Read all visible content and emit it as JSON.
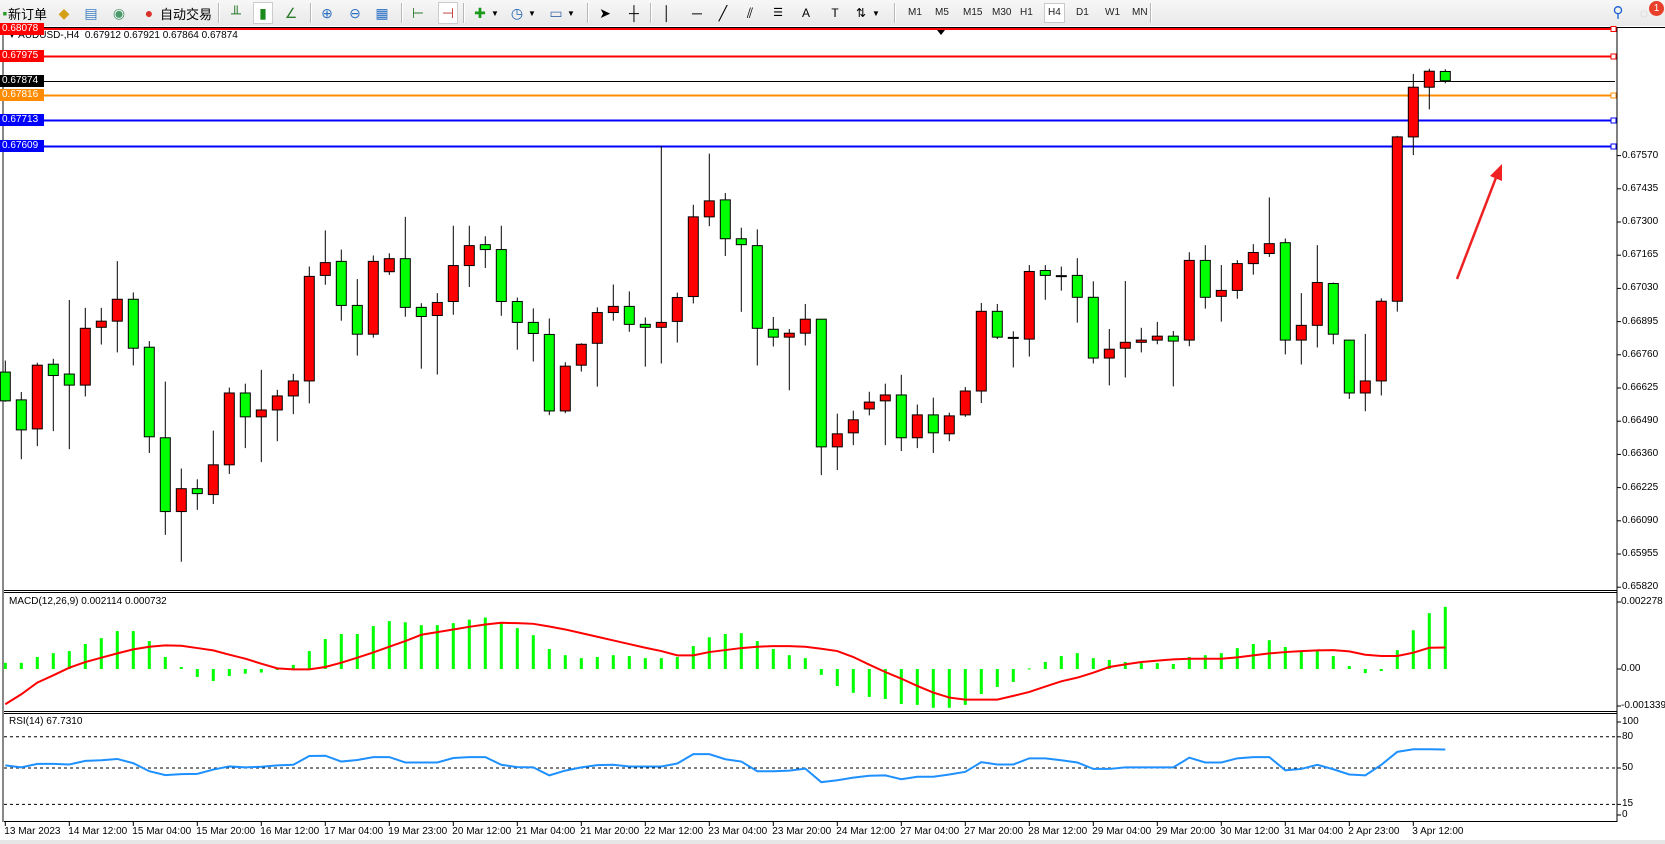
{
  "toolbar": {
    "new_order_label": "新订单",
    "auto_trading_label": "自动交易",
    "timeframes": [
      "M1",
      "M5",
      "M15",
      "M30",
      "H1",
      "H4",
      "D1",
      "W1",
      "MN"
    ],
    "active_timeframe": "H4",
    "notification_count": "1",
    "icons": [
      "new-order-icon",
      "market-watch-icon",
      "data-window-icon",
      "signals-icon",
      "auto-trading-icon",
      "bar-chart-icon",
      "candlestick-icon",
      "line-chart-icon",
      "zoom-in-icon",
      "zoom-out-icon",
      "tile-windows-icon",
      "chart-shift-icon",
      "autoscroll-icon",
      "indicators-icon",
      "periods-icon",
      "templates-icon",
      "cursor-icon",
      "crosshair-icon",
      "vertical-line-icon",
      "horizontal-line-icon",
      "trendline-icon",
      "channel-icon",
      "fibonacci-icon",
      "text-icon",
      "text-label-icon",
      "arrows-icon",
      "search-icon",
      "notification-icon"
    ]
  },
  "chart": {
    "symbol": "AUDUSD-,H4",
    "ohlc_text": "0.67912 0.67921 0.67864 0.67874",
    "bull_color": "#ff0000",
    "bear_color": "#00ff00",
    "price_axis_labels": [
      "0.67570",
      "0.67435",
      "0.67300",
      "0.67165",
      "0.67030",
      "0.66895",
      "0.66760",
      "0.66625",
      "0.66490",
      "0.66360",
      "0.66225",
      "0.66090",
      "0.65955",
      "0.65820"
    ],
    "horizontal_lines": [
      {
        "price": 0.68078,
        "label": "0.68078",
        "color": "#ff0000"
      },
      {
        "price": 0.67975,
        "label": "0.67975",
        "color": "#ff0000"
      },
      {
        "price": 0.67874,
        "label": "0.67874",
        "color": "#000000"
      },
      {
        "price": 0.67816,
        "label": "0.67816",
        "color": "#ff8c00"
      },
      {
        "price": 0.67713,
        "label": "0.67713",
        "color": "#0000ff"
      },
      {
        "price": 0.67609,
        "label": "0.67609",
        "color": "#0000ff"
      }
    ],
    "time_labels": [
      "13 Mar 2023",
      "14 Mar 12:00",
      "15 Mar 04:00",
      "15 Mar 20:00",
      "16 Mar 12:00",
      "17 Mar 04:00",
      "19 Mar 23:00",
      "20 Mar 12:00",
      "21 Mar 04:00",
      "21 Mar 20:00",
      "22 Mar 12:00",
      "23 Mar 04:00",
      "23 Mar 20:00",
      "24 Mar 12:00",
      "27 Mar 04:00",
      "27 Mar 20:00",
      "28 Mar 12:00",
      "29 Mar 04:00",
      "29 Mar 20:00",
      "30 Mar 12:00",
      "31 Mar 04:00",
      "2 Apr 23:00",
      "3 Apr 12:00"
    ],
    "arrow_color": "#ee2222"
  },
  "macd": {
    "title": "MACD(12,26,9) 0.002114 0.000732",
    "axis_labels": [
      "0.002278",
      "0.00",
      "-0.001339"
    ],
    "histogram_color": "#00ff00",
    "signal_color": "#ff0000"
  },
  "rsi": {
    "title": "RSI(14) 67.7310",
    "axis_labels": [
      "100",
      "80",
      "50",
      "15",
      "0"
    ],
    "line_color": "#1e90ff"
  },
  "chart_data": [
    {
      "type": "candlestick",
      "title": "AUDUSD-,H4",
      "ylim": [
        0.6582,
        0.68078
      ],
      "ohlc": [
        [
          0.6669,
          0.66737,
          0.66569,
          0.66573
        ],
        [
          0.66577,
          0.66609,
          0.66336,
          0.66455
        ],
        [
          0.66459,
          0.66728,
          0.66389,
          0.66718
        ],
        [
          0.66722,
          0.66744,
          0.6645,
          0.66676
        ],
        [
          0.66682,
          0.66983,
          0.66377,
          0.66637
        ],
        [
          0.66637,
          0.66951,
          0.66591,
          0.66868
        ],
        [
          0.66872,
          0.66951,
          0.66802,
          0.66897
        ],
        [
          0.66897,
          0.67141,
          0.6677,
          0.66986
        ],
        [
          0.66986,
          0.67014,
          0.66717,
          0.66787
        ],
        [
          0.66791,
          0.66816,
          0.66361,
          0.66427
        ],
        [
          0.66423,
          0.66651,
          0.66028,
          0.66123
        ],
        [
          0.66123,
          0.66298,
          0.65919,
          0.66216
        ],
        [
          0.66216,
          0.66254,
          0.6613,
          0.66196
        ],
        [
          0.66192,
          0.66452,
          0.66154,
          0.66313
        ],
        [
          0.66313,
          0.66627,
          0.66276,
          0.66605
        ],
        [
          0.66605,
          0.66643,
          0.66381,
          0.66508
        ],
        [
          0.66508,
          0.66699,
          0.66324,
          0.66536
        ],
        [
          0.66536,
          0.66618,
          0.66409,
          0.66593
        ],
        [
          0.66593,
          0.66683,
          0.66519,
          0.66654
        ],
        [
          0.66654,
          0.67119,
          0.66563,
          0.67079
        ],
        [
          0.67083,
          0.67266,
          0.67045,
          0.67135
        ],
        [
          0.6714,
          0.67188,
          0.66899,
          0.66961
        ],
        [
          0.66961,
          0.67068,
          0.66757,
          0.66844
        ],
        [
          0.66844,
          0.67164,
          0.6683,
          0.6714
        ],
        [
          0.67098,
          0.67173,
          0.67085,
          0.67151
        ],
        [
          0.67151,
          0.67321,
          0.66915,
          0.66953
        ],
        [
          0.66953,
          0.6697,
          0.66704,
          0.66916
        ],
        [
          0.6692,
          0.67011,
          0.6668,
          0.66973
        ],
        [
          0.66977,
          0.67285,
          0.66923,
          0.67123
        ],
        [
          0.67123,
          0.67285,
          0.67036,
          0.67204
        ],
        [
          0.67208,
          0.67242,
          0.67113,
          0.67188
        ],
        [
          0.67188,
          0.67285,
          0.66919,
          0.66977
        ],
        [
          0.66977,
          0.66993,
          0.66781,
          0.66892
        ],
        [
          0.66892,
          0.66949,
          0.66733,
          0.66847
        ],
        [
          0.66843,
          0.66908,
          0.66515,
          0.66532
        ],
        [
          0.66532,
          0.6673,
          0.66523,
          0.66714
        ],
        [
          0.66718,
          0.66807,
          0.66692,
          0.66803
        ],
        [
          0.66807,
          0.66953,
          0.66631,
          0.66932
        ],
        [
          0.66932,
          0.67046,
          0.66899,
          0.66957
        ],
        [
          0.66957,
          0.67018,
          0.66854,
          0.66884
        ],
        [
          0.66884,
          0.66912,
          0.66712,
          0.66872
        ],
        [
          0.66872,
          0.67609,
          0.66725,
          0.66892
        ],
        [
          0.66896,
          0.67013,
          0.6681,
          0.66993
        ],
        [
          0.66997,
          0.6737,
          0.66969,
          0.67321
        ],
        [
          0.67321,
          0.67578,
          0.67283,
          0.67386
        ],
        [
          0.6739,
          0.67418,
          0.67162,
          0.67232
        ],
        [
          0.67232,
          0.67277,
          0.66935,
          0.67208
        ],
        [
          0.67204,
          0.6727,
          0.66717,
          0.66868
        ],
        [
          0.66864,
          0.66914,
          0.66794,
          0.66832
        ],
        [
          0.66832,
          0.66865,
          0.66616,
          0.66848
        ],
        [
          0.66848,
          0.66967,
          0.66798,
          0.66905
        ],
        [
          0.66905,
          0.66905,
          0.66271,
          0.66386
        ],
        [
          0.66386,
          0.66521,
          0.66292,
          0.66439
        ],
        [
          0.66443,
          0.66533,
          0.66393,
          0.66496
        ],
        [
          0.6654,
          0.6661,
          0.66514,
          0.66568
        ],
        [
          0.66573,
          0.66643,
          0.66393,
          0.66597
        ],
        [
          0.66597,
          0.66679,
          0.66369,
          0.66423
        ],
        [
          0.66423,
          0.66558,
          0.66381,
          0.66516
        ],
        [
          0.66516,
          0.66586,
          0.66361,
          0.66443
        ],
        [
          0.66439,
          0.66525,
          0.66409,
          0.66512
        ],
        [
          0.66516,
          0.66629,
          0.66508,
          0.66613
        ],
        [
          0.66613,
          0.66971,
          0.66564,
          0.66937
        ],
        [
          0.66937,
          0.66967,
          0.66824,
          0.66832
        ],
        [
          0.6683,
          0.66856,
          0.66709,
          0.66831
        ],
        [
          0.66824,
          0.67125,
          0.66753,
          0.67099
        ],
        [
          0.67103,
          0.67125,
          0.66984,
          0.67083
        ],
        [
          0.67082,
          0.67119,
          0.67021,
          0.67081
        ],
        [
          0.67083,
          0.67153,
          0.66891,
          0.66994
        ],
        [
          0.66994,
          0.67059,
          0.66725,
          0.66747
        ],
        [
          0.66747,
          0.66865,
          0.66636,
          0.66783
        ],
        [
          0.66787,
          0.6706,
          0.66668,
          0.66811
        ],
        [
          0.66811,
          0.6687,
          0.6677,
          0.6682
        ],
        [
          0.6682,
          0.66894,
          0.66803,
          0.66836
        ],
        [
          0.66836,
          0.66857,
          0.66632,
          0.66816
        ],
        [
          0.6682,
          0.67177,
          0.66795,
          0.67144
        ],
        [
          0.67144,
          0.67206,
          0.66948,
          0.66994
        ],
        [
          0.66998,
          0.67125,
          0.66895,
          0.67022
        ],
        [
          0.67022,
          0.67145,
          0.66988,
          0.67131
        ],
        [
          0.67131,
          0.6721,
          0.67086,
          0.67176
        ],
        [
          0.67172,
          0.674,
          0.67158,
          0.67212
        ],
        [
          0.67216,
          0.67233,
          0.66762,
          0.6682
        ],
        [
          0.6682,
          0.67011,
          0.66721,
          0.6688
        ],
        [
          0.6688,
          0.67206,
          0.6679,
          0.67054
        ],
        [
          0.6705,
          0.67054,
          0.66803,
          0.66844
        ],
        [
          0.6682,
          0.6682,
          0.66581,
          0.66605
        ],
        [
          0.66605,
          0.66845,
          0.66531,
          0.66654
        ],
        [
          0.66654,
          0.6699,
          0.66595,
          0.66978
        ],
        [
          0.66978,
          0.6765,
          0.66936,
          0.67646
        ],
        [
          0.67646,
          0.67902,
          0.67572,
          0.67848
        ],
        [
          0.67848,
          0.67923,
          0.67758,
          0.67913
        ],
        [
          0.67912,
          0.67921,
          0.67864,
          0.67874
        ]
      ]
    },
    {
      "type": "bar",
      "title": "MACD(12,26,9)",
      "ylim": [
        -0.001339,
        0.002278
      ],
      "series": [
        {
          "name": "MACD",
          "type": "bar",
          "values": [
            0.00021,
            0.00021,
            0.00041,
            0.00054,
            0.00061,
            0.00085,
            0.00105,
            0.00129,
            0.00129,
            0.00095,
            0.00041,
            7e-05,
            -0.00027,
            -0.00041,
            -0.00024,
            -0.00016,
            -0.00012,
            0,
            0.00014,
            0.00061,
            0.00102,
            0.00119,
            0.00119,
            0.00146,
            0.00163,
            0.00159,
            0.00149,
            0.00149,
            0.00156,
            0.00168,
            0.00175,
            0.00159,
            0.00139,
            0.00115,
            0.00068,
            0.00047,
            0.00037,
            0.00041,
            0.00047,
            0.00044,
            0.00037,
            0.00037,
            0.00041,
            0.00078,
            0.00108,
            0.00119,
            0.00122,
            0.00095,
            0.00068,
            0.00047,
            0.00037,
            -0.0002,
            -0.00058,
            -0.00081,
            -0.00095,
            -0.00102,
            -0.00119,
            -0.00122,
            -0.00132,
            -0.00132,
            -0.00122,
            -0.00085,
            -0.00061,
            -0.00044,
            2e-05,
            0.00024,
            0.00044,
            0.00054,
            0.00037,
            0.00031,
            0.00024,
            0.0002,
            0.0002,
            0.00017,
            0.00041,
            0.00047,
            0.00054,
            0.00071,
            0.00085,
            0.00098,
            0.00075,
            0.00058,
            0.00061,
            0.00044,
            0.0001,
            -0.00014,
            -7e-05,
            0.00064,
            0.00132,
            0.0019,
            0.002114
          ]
        },
        {
          "name": "Signal",
          "type": "line",
          "values": [
            -0.001198,
            -0.000859,
            -0.000463,
            -0.000215,
            4.5e-05,
            0.000237,
            0.000384,
            0.000531,
            0.000667,
            0.000757,
            0.000802,
            0.000791,
            0.000712,
            0.000633,
            0.000486,
            0.00035,
            0.000181,
            2.3e-05,
            -1.1e-05,
            -1.1e-05,
            6.8e-05,
            0.000215,
            0.000384,
            0.000565,
            0.000757,
            0.000949,
            0.001164,
            0.001254,
            0.001345,
            0.001435,
            0.001514,
            0.001571,
            0.001559,
            0.001537,
            0.001446,
            0.001345,
            0.00122,
            0.001096,
            0.000972,
            0.000848,
            0.000723,
            0.00061,
            0.000463,
            0.000463,
            0.000576,
            0.000644,
            0.000712,
            0.000757,
            0.00078,
            0.00078,
            0.000757,
            0.000689,
            0.00061,
            0.000407,
            0.000147,
            -0.000102,
            -0.000328,
            -0.000576,
            -0.000802,
            -0.000972,
            -0.00104,
            -0.00104,
            -0.00104,
            -0.000915,
            -0.00078,
            -0.000599,
            -0.000418,
            -0.000294,
            -0.000124,
            6.8e-05,
            0.000158,
            0.000237,
            0.000283,
            0.000328,
            0.00035,
            0.00035,
            0.00035,
            0.000396,
            0.000463,
            0.000531,
            0.000576,
            0.00061,
            0.000633,
            0.000644,
            0.000599,
            0.000486,
            0.000441,
            0.000441,
            0.000554,
            0.000723,
            0.000732
          ]
        }
      ]
    },
    {
      "type": "line",
      "title": "RSI(14)",
      "ylim": [
        0,
        100
      ],
      "levels": [
        80,
        50,
        15
      ],
      "values": [
        52.5,
        50.6,
        54.0,
        54.0,
        53.4,
        56.8,
        57.4,
        58.7,
        54.6,
        46.9,
        43.2,
        44.1,
        44.4,
        48.5,
        51.5,
        50.6,
        51.2,
        52.5,
        53.1,
        61.5,
        61.8,
        56.2,
        57.7,
        60.5,
        60.5,
        55.3,
        55.3,
        55.3,
        59.6,
        60.5,
        60.5,
        53.1,
        50.9,
        50.6,
        42.9,
        47.5,
        50.6,
        52.8,
        53.1,
        51.5,
        51.5,
        51.5,
        54.3,
        63.3,
        63.3,
        58.4,
        56.2,
        46.9,
        46.9,
        47.5,
        49.4,
        36.4,
        38.2,
        40.7,
        42.6,
        42.9,
        39.2,
        41.6,
        41.6,
        43.8,
        46.3,
        55.6,
        53.4,
        53.4,
        59.3,
        59.3,
        57.4,
        55.3,
        49.1,
        49.1,
        50.6,
        50.6,
        50.6,
        50.6,
        59.9,
        55.3,
        55.3,
        59.3,
        60.5,
        60.5,
        47.8,
        49.1,
        53.1,
        48.8,
        43.8,
        42.9,
        53.1,
        65.5,
        68.0,
        68.0,
        67.731
      ]
    }
  ]
}
